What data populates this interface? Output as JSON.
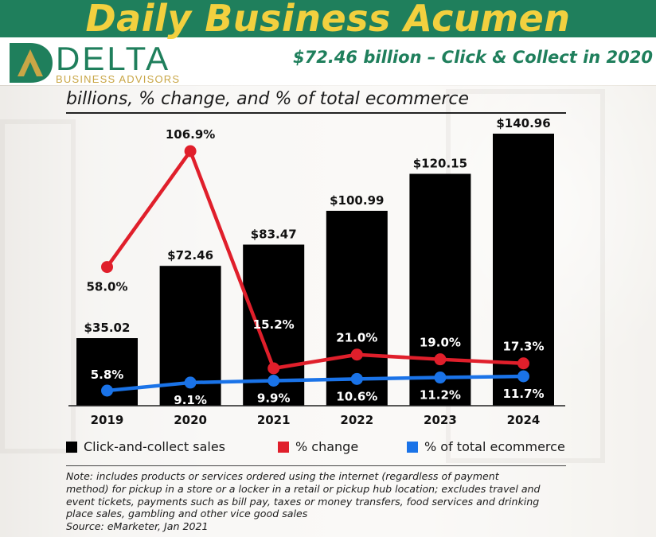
{
  "header": {
    "title": "Daily Business Acumen",
    "tagline": "$72.46 billion – Click & Collect in 2020"
  },
  "logo": {
    "word": "DELTA",
    "sub": "BUSINESS ADVISORS"
  },
  "colors": {
    "brand_green": "#1f7f5c",
    "brand_gold": "#f2d03f",
    "bar": "#000000",
    "change_line": "#e01f2b",
    "share_line": "#1a73e8"
  },
  "chart_data": {
    "type": "bar",
    "title": "",
    "subtitle": "billions, % change, and % of total ecommerce",
    "categories": [
      "2019",
      "2020",
      "2021",
      "2022",
      "2023",
      "2024"
    ],
    "series": [
      {
        "name": "Click-and-collect sales",
        "type": "bar",
        "values": [
          35.02,
          72.46,
          83.47,
          100.99,
          120.15,
          140.96
        ],
        "labels": [
          "$35.02",
          "$72.46",
          "$83.47",
          "$100.99",
          "$120.15",
          "$140.96"
        ]
      },
      {
        "name": "% change",
        "type": "line",
        "values": [
          58.0,
          106.9,
          15.2,
          21.0,
          19.0,
          17.3
        ],
        "labels": [
          "58.0%",
          "106.9%",
          "15.2%",
          "21.0%",
          "19.0%",
          "17.3%"
        ]
      },
      {
        "name": "% of total ecommerce",
        "type": "line",
        "values": [
          5.8,
          9.1,
          9.9,
          10.6,
          11.2,
          11.7
        ],
        "labels": [
          "5.8%",
          "9.1%",
          "9.9%",
          "10.6%",
          "11.2%",
          "11.7%"
        ]
      }
    ],
    "ylim_bars": [
      0,
      150
    ],
    "legend_position": "bottom",
    "grid": false
  },
  "note": {
    "lines": [
      "Note: includes products or services ordered using the internet (regardless of payment",
      "method) for pickup in a store or a locker in a retail or pickup hub location; excludes travel and",
      "event tickets, payments such as bill pay, taxes or money transfers, food services and drinking",
      "place sales, gambling and other vice good sales",
      "Source: eMarketer, Jan 2021"
    ]
  }
}
